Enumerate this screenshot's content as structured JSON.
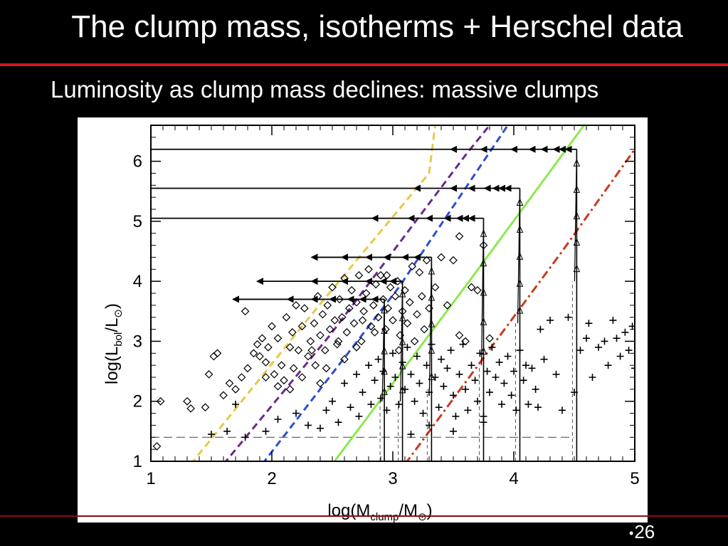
{
  "slide": {
    "title": "The clump mass, isotherms + Herschel data",
    "subtitle": "Luminosity as clump mass declines: massive clumps",
    "page_bullet": "•",
    "page_number": "26",
    "colors": {
      "background": "#000000",
      "rule": "#d0161c",
      "text": "#ffffff"
    }
  },
  "chart_data": {
    "type": "scatter",
    "title": "",
    "xlabel_prefix": "log(M",
    "xlabel_sub": "clump",
    "xlabel_suffix": "/M",
    "xlabel_sun": "⊙",
    "xlabel_close": ")",
    "ylabel_prefix": "log(L",
    "ylabel_sub": "bol",
    "ylabel_suffix": "/L",
    "ylabel_sun": "⊙",
    "ylabel_close": ")",
    "xlim": [
      1,
      5
    ],
    "ylim": [
      1,
      6.6
    ],
    "xticks": [
      "1",
      "2",
      "3",
      "4",
      "5"
    ],
    "yticks": [
      "1",
      "2",
      "3",
      "4",
      "5",
      "6"
    ],
    "xtick_values": [
      1,
      2,
      3,
      4,
      5
    ],
    "ytick_values": [
      1,
      2,
      3,
      4,
      5,
      6
    ],
    "threshold_lines": {
      "y": 1.4,
      "style": "dashed"
    },
    "isotherms": [
      {
        "color": "#e8c84a",
        "style": "dashed",
        "points": [
          [
            1.33,
            0.95
          ],
          [
            2.37,
            3.55
          ],
          [
            3.3,
            5.8
          ],
          [
            3.35,
            6.6
          ]
        ]
      },
      {
        "color": "#6a2a8a",
        "style": "dashed",
        "points": [
          [
            1.6,
            0.95
          ],
          [
            2.48,
            3.1
          ],
          [
            3.6,
            6.1
          ],
          [
            3.8,
            6.6
          ]
        ]
      },
      {
        "color": "#2a4fd0",
        "style": "dashed",
        "points": [
          [
            1.92,
            0.95
          ],
          [
            3.05,
            3.9
          ],
          [
            3.95,
            6.6
          ]
        ]
      },
      {
        "color": "#8ee84e",
        "style": "solid",
        "points": [
          [
            2.5,
            0.95
          ],
          [
            3.65,
            4.05
          ],
          [
            4.58,
            6.6
          ]
        ]
      },
      {
        "color": "#c83a1c",
        "style": "dashdot",
        "points": [
          [
            3.1,
            0.95
          ],
          [
            4.4,
            4.5
          ],
          [
            5.0,
            6.2
          ]
        ]
      }
    ],
    "tracks": [
      {
        "start_x": 2.93,
        "end_x": 1.7,
        "plateau_y": 3.7,
        "rise_from_y": 2.0,
        "arrows_x": [
          2.85,
          2.75,
          2.65,
          2.5,
          2.35,
          2.15,
          1.7
        ]
      },
      {
        "start_x": 3.08,
        "end_x": 1.9,
        "plateau_y": 4.0,
        "rise_from_y": 2.0,
        "arrows_x": [
          3.0,
          2.92,
          2.8,
          2.6,
          2.35,
          1.9
        ]
      },
      {
        "start_x": 3.32,
        "end_x": 2.35,
        "plateau_y": 4.4,
        "rise_from_y": 2.2,
        "arrows_x": [
          3.2,
          3.1,
          2.95,
          2.8,
          2.6,
          2.35
        ]
      },
      {
        "start_x": 3.75,
        "end_x": 1.0,
        "plateau_y": 5.05,
        "rise_from_y": 2.6,
        "arrows_x": [
          3.65,
          3.6,
          3.55,
          3.45,
          3.3,
          3.15,
          2.85
        ]
      },
      {
        "start_x": 4.05,
        "end_x": 1.0,
        "plateau_y": 5.55,
        "rise_from_y": 3.3,
        "arrows_x": [
          3.95,
          3.9,
          3.85,
          3.78,
          3.65,
          3.5,
          3.2
        ]
      },
      {
        "start_x": 4.52,
        "end_x": 1.0,
        "plateau_y": 6.2,
        "rise_from_y": 4.0,
        "arrows_x": [
          4.45,
          4.4,
          4.35,
          4.25,
          4.15,
          4.0,
          3.75,
          3.5
        ]
      }
    ],
    "series": [
      {
        "marker": "diamond",
        "points": [
          [
            1.05,
            1.25
          ],
          [
            1.08,
            2.0
          ],
          [
            1.3,
            2.0
          ],
          [
            1.33,
            1.88
          ],
          [
            1.45,
            1.9
          ],
          [
            1.48,
            2.45
          ],
          [
            1.52,
            2.75
          ],
          [
            1.55,
            2.8
          ],
          [
            1.6,
            2.1
          ],
          [
            1.65,
            2.3
          ],
          [
            1.7,
            2.2
          ],
          [
            1.75,
            2.4
          ],
          [
            1.8,
            2.55
          ],
          [
            1.78,
            3.5
          ],
          [
            1.85,
            2.8
          ],
          [
            1.88,
            2.95
          ],
          [
            1.9,
            2.75
          ],
          [
            1.92,
            3.05
          ],
          [
            1.95,
            2.65
          ],
          [
            1.97,
            2.9
          ],
          [
            2.0,
            3.25
          ],
          [
            2.02,
            2.45
          ],
          [
            2.05,
            3.05
          ],
          [
            2.08,
            2.6
          ],
          [
            2.1,
            2.35
          ],
          [
            2.12,
            3.4
          ],
          [
            2.15,
            2.9
          ],
          [
            2.17,
            3.15
          ],
          [
            2.18,
            2.55
          ],
          [
            2.2,
            3.6
          ],
          [
            2.22,
            2.85
          ],
          [
            2.25,
            3.25
          ],
          [
            2.27,
            3.55
          ],
          [
            2.3,
            2.75
          ],
          [
            2.32,
            3.0
          ],
          [
            2.35,
            3.3
          ],
          [
            2.36,
            2.6
          ],
          [
            2.38,
            3.75
          ],
          [
            2.4,
            3.1
          ],
          [
            2.42,
            3.45
          ],
          [
            2.44,
            2.85
          ],
          [
            2.46,
            3.6
          ],
          [
            2.48,
            3.2
          ],
          [
            2.5,
            3.9
          ],
          [
            2.52,
            3.35
          ],
          [
            2.54,
            2.95
          ],
          [
            2.56,
            3.7
          ],
          [
            2.58,
            3.4
          ],
          [
            2.6,
            4.05
          ],
          [
            2.62,
            3.15
          ],
          [
            2.64,
            3.55
          ],
          [
            2.66,
            3.85
          ],
          [
            2.68,
            3.3
          ],
          [
            2.7,
            3.65
          ],
          [
            2.72,
            4.1
          ],
          [
            2.74,
            3.0
          ],
          [
            2.76,
            3.5
          ],
          [
            2.78,
            3.8
          ],
          [
            2.8,
            4.2
          ],
          [
            2.82,
            3.25
          ],
          [
            2.84,
            3.6
          ],
          [
            2.86,
            3.95
          ],
          [
            2.88,
            3.4
          ],
          [
            2.9,
            4.1
          ],
          [
            2.92,
            3.7
          ],
          [
            2.94,
            3.2
          ],
          [
            2.96,
            3.55
          ],
          [
            2.98,
            3.9
          ],
          [
            3.0,
            3.35
          ],
          [
            3.02,
            3.75
          ],
          [
            3.04,
            4.0
          ],
          [
            3.06,
            3.1
          ],
          [
            3.08,
            3.5
          ],
          [
            3.1,
            3.85
          ],
          [
            3.12,
            3.3
          ],
          [
            3.14,
            3.65
          ],
          [
            3.16,
            4.25
          ],
          [
            3.18,
            3.0
          ],
          [
            3.2,
            3.45
          ],
          [
            3.22,
            4.15
          ],
          [
            3.24,
            3.75
          ],
          [
            3.26,
            3.2
          ],
          [
            3.28,
            4.35
          ],
          [
            3.3,
            3.55
          ],
          [
            3.35,
            3.9
          ],
          [
            3.4,
            4.4
          ],
          [
            3.45,
            3.6
          ],
          [
            3.5,
            4.35
          ],
          [
            3.55,
            3.1
          ],
          [
            3.6,
            3.0
          ],
          [
            3.65,
            3.9
          ],
          [
            3.7,
            3.85
          ],
          [
            3.75,
            4.6
          ],
          [
            3.8,
            3.05
          ],
          [
            3.55,
            4.75
          ],
          [
            2.95,
            4.1
          ],
          [
            2.7,
            2.9
          ],
          [
            2.45,
            2.55
          ],
          [
            2.25,
            2.4
          ],
          [
            2.05,
            2.25
          ],
          [
            2.85,
            3.15
          ],
          [
            3.05,
            2.85
          ],
          [
            2.6,
            2.7
          ],
          [
            2.4,
            2.3
          ],
          [
            2.15,
            2.2
          ],
          [
            1.95,
            2.4
          ],
          [
            2.33,
            2.85
          ],
          [
            2.55,
            3.0
          ],
          [
            2.75,
            3.35
          ]
        ]
      },
      {
        "marker": "plus",
        "points": [
          [
            1.5,
            1.45
          ],
          [
            1.63,
            1.5
          ],
          [
            1.7,
            1.95
          ],
          [
            1.78,
            1.4
          ],
          [
            1.95,
            1.5
          ],
          [
            2.05,
            1.7
          ],
          [
            2.2,
            1.8
          ],
          [
            2.3,
            1.6
          ],
          [
            2.4,
            1.55
          ],
          [
            2.45,
            1.85
          ],
          [
            2.5,
            2.0
          ],
          [
            2.55,
            1.65
          ],
          [
            2.6,
            2.3
          ],
          [
            2.65,
            1.9
          ],
          [
            2.7,
            2.45
          ],
          [
            2.72,
            1.75
          ],
          [
            2.75,
            2.15
          ],
          [
            2.8,
            2.6
          ],
          [
            2.82,
            1.95
          ],
          [
            2.85,
            2.35
          ],
          [
            2.88,
            2.7
          ],
          [
            2.9,
            2.05
          ],
          [
            2.92,
            2.5
          ],
          [
            2.95,
            1.85
          ],
          [
            2.98,
            2.25
          ],
          [
            3.0,
            2.8
          ],
          [
            3.02,
            2.4
          ],
          [
            3.05,
            1.95
          ],
          [
            3.08,
            2.65
          ],
          [
            3.1,
            2.2
          ],
          [
            3.12,
            2.9
          ],
          [
            3.15,
            2.45
          ],
          [
            3.18,
            2.0
          ],
          [
            3.2,
            2.75
          ],
          [
            3.22,
            2.3
          ],
          [
            3.25,
            1.8
          ],
          [
            3.28,
            2.6
          ],
          [
            3.3,
            2.15
          ],
          [
            3.32,
            2.95
          ],
          [
            3.35,
            2.4
          ],
          [
            3.38,
            1.9
          ],
          [
            3.4,
            2.7
          ],
          [
            3.42,
            2.25
          ],
          [
            3.45,
            2.55
          ],
          [
            3.48,
            2.85
          ],
          [
            3.5,
            2.1
          ],
          [
            3.52,
            1.75
          ],
          [
            3.55,
            2.45
          ],
          [
            3.58,
            2.95
          ],
          [
            3.6,
            2.2
          ],
          [
            3.62,
            1.85
          ],
          [
            3.65,
            2.6
          ],
          [
            3.68,
            2.35
          ],
          [
            3.7,
            2.0
          ],
          [
            3.72,
            2.8
          ],
          [
            3.75,
            1.75
          ],
          [
            3.78,
            2.5
          ],
          [
            3.8,
            2.15
          ],
          [
            3.82,
            2.9
          ],
          [
            3.85,
            2.4
          ],
          [
            3.88,
            2.65
          ],
          [
            3.9,
            1.95
          ],
          [
            3.92,
            2.3
          ],
          [
            3.95,
            2.75
          ],
          [
            3.98,
            2.1
          ],
          [
            4.0,
            2.5
          ],
          [
            4.02,
            1.85
          ],
          [
            4.05,
            2.85
          ],
          [
            4.08,
            2.35
          ],
          [
            4.1,
            2.6
          ],
          [
            4.12,
            1.95
          ],
          [
            4.15,
            2.55
          ],
          [
            4.18,
            2.2
          ],
          [
            4.2,
            1.9
          ],
          [
            4.22,
            3.2
          ],
          [
            4.25,
            2.7
          ],
          [
            4.3,
            3.35
          ],
          [
            4.35,
            2.45
          ],
          [
            4.4,
            1.85
          ],
          [
            4.45,
            3.4
          ],
          [
            4.5,
            2.15
          ],
          [
            4.55,
            2.85
          ],
          [
            4.6,
            3.05
          ],
          [
            4.62,
            3.3
          ],
          [
            4.65,
            2.4
          ],
          [
            4.7,
            2.9
          ],
          [
            4.75,
            3.0
          ],
          [
            4.78,
            2.6
          ],
          [
            4.82,
            3.35
          ],
          [
            4.85,
            3.05
          ],
          [
            4.88,
            2.75
          ],
          [
            4.92,
            3.15
          ],
          [
            4.95,
            2.85
          ],
          [
            4.98,
            3.25
          ],
          [
            5.0,
            2.55
          ],
          [
            3.15,
            1.45
          ],
          [
            3.3,
            1.6
          ],
          [
            3.5,
            1.5
          ],
          [
            3.75,
            1.65
          ]
        ]
      }
    ],
    "legend": "none",
    "grid": false
  }
}
